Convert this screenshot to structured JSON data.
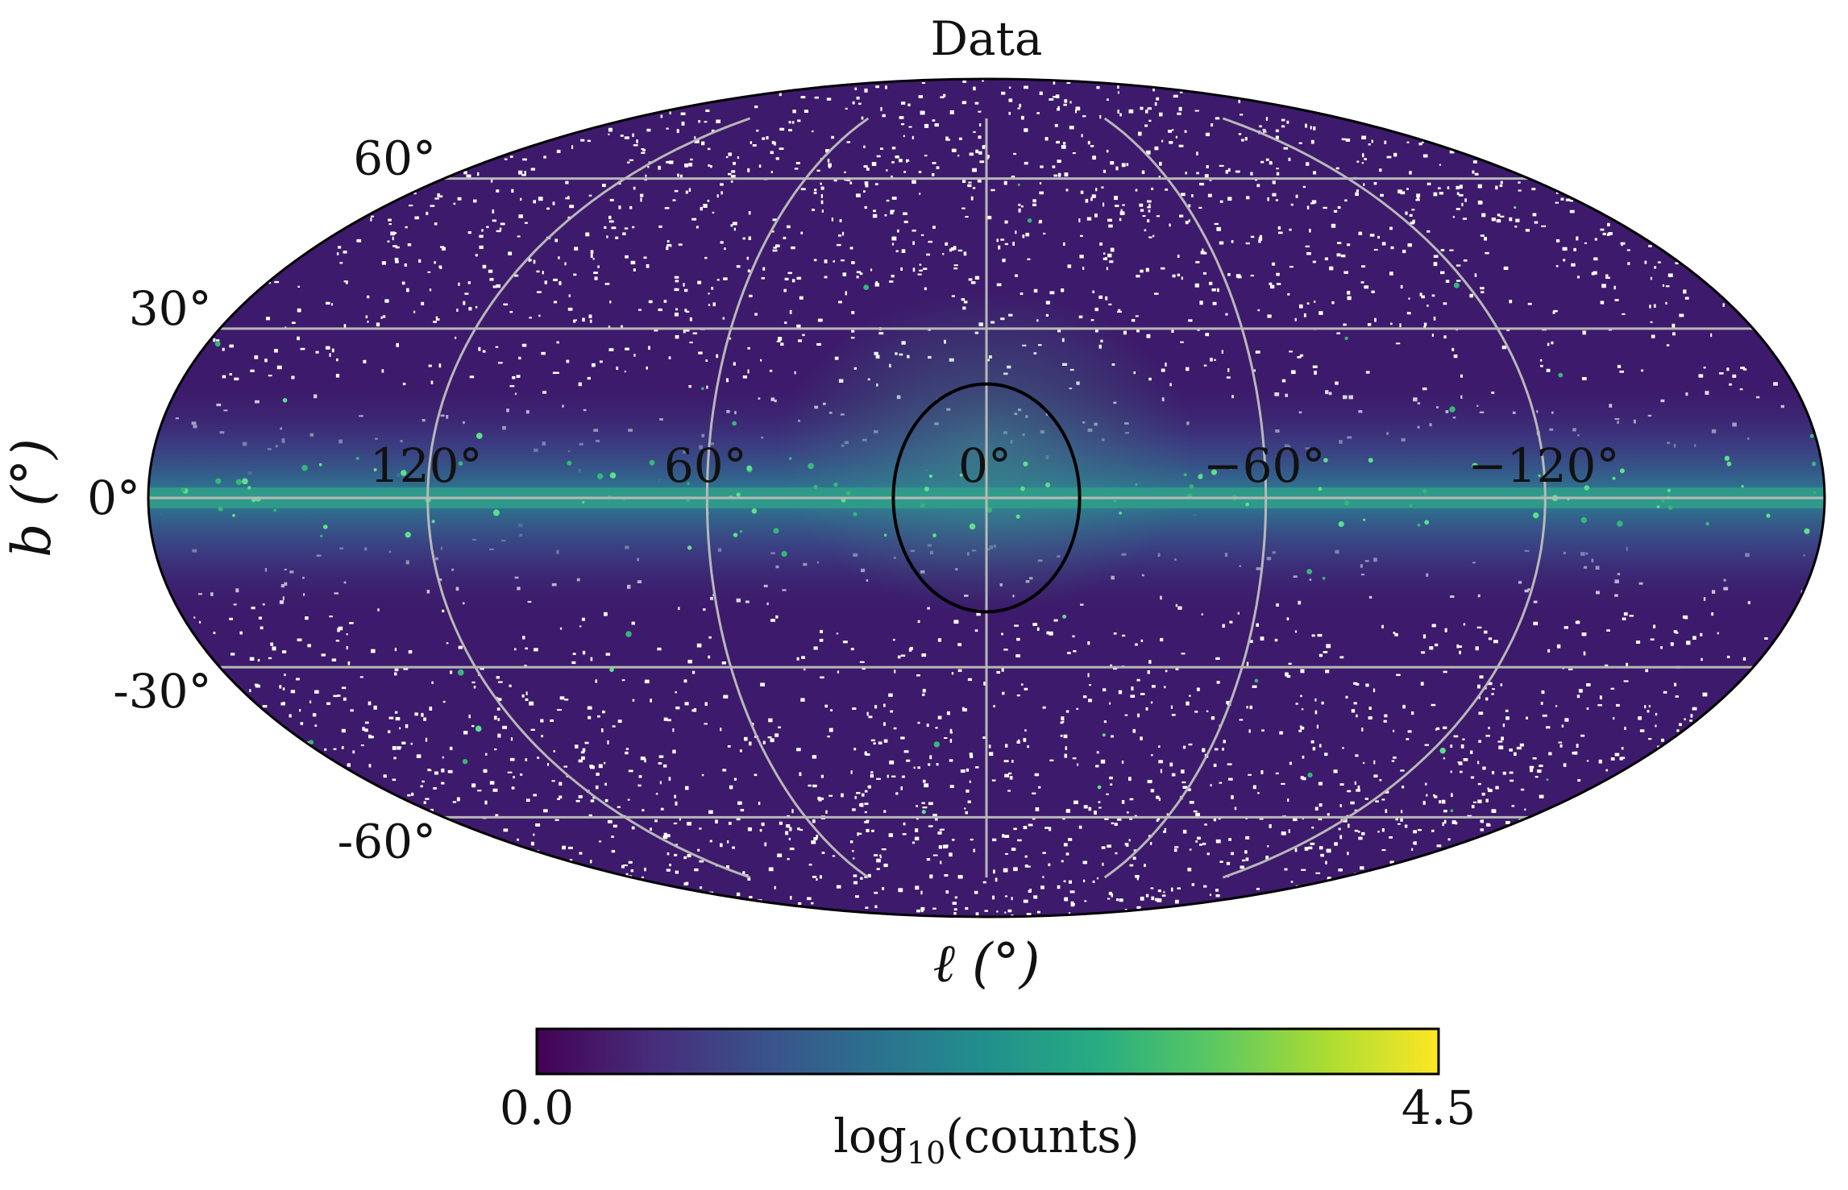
{
  "chart_data": {
    "type": "heatmap",
    "projection": "mollweide",
    "title": "Data",
    "xlabel": "ℓ (°)",
    "ylabel": "b (°)",
    "longitude_range": [
      -180,
      180
    ],
    "latitude_range": [
      -90,
      90
    ],
    "longitude_ticks": [
      {
        "value": 120,
        "label": "120°"
      },
      {
        "value": 60,
        "label": "60°"
      },
      {
        "value": 0,
        "label": "0°"
      },
      {
        "value": -60,
        "label": "−60°"
      },
      {
        "value": -120,
        "label": "−120°"
      }
    ],
    "latitude_ticks": [
      {
        "value": 60,
        "label": "60°"
      },
      {
        "value": 30,
        "label": "30°"
      },
      {
        "value": 0,
        "label": "0°"
      },
      {
        "value": -30,
        "label": "-30°"
      },
      {
        "value": -60,
        "label": "-60°"
      }
    ],
    "region_of_interest": {
      "shape": "circle",
      "center_l": 0,
      "center_b": 0,
      "radius_deg": 20
    },
    "colorbar": {
      "label_base": "log",
      "label_sub": "10",
      "label_rest": "(counts)",
      "min": 0.0,
      "max": 4.5,
      "min_label": "0.0",
      "max_label": "4.5",
      "colormap": "viridis",
      "stops": [
        "#440154",
        "#472c7a",
        "#3b518b",
        "#2c718e",
        "#21908d",
        "#27ad81",
        "#5cc863",
        "#aadc32",
        "#fde725"
      ]
    },
    "colors": {
      "background_low": "#3d1a6b",
      "plane_emission": "#2d8a8c",
      "plane_peak": "#5de08a",
      "empty_pixel": "#ffffff",
      "gridline": "#b8b8b8",
      "outline": "#000000"
    }
  }
}
